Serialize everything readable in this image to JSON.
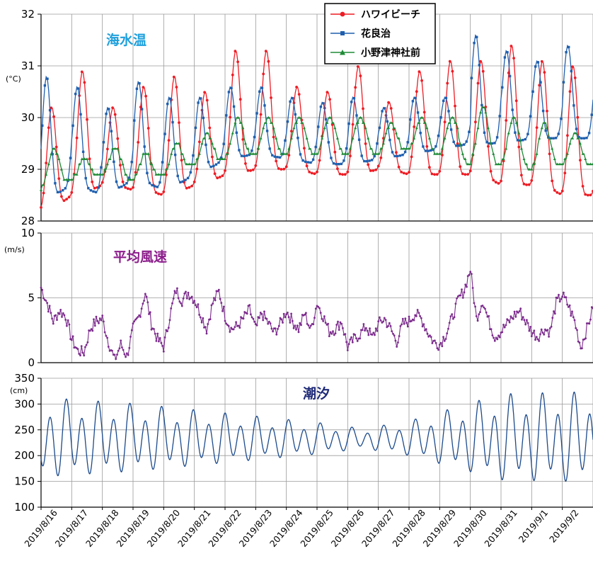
{
  "colors": {
    "hawaii": "#ee1c24",
    "hanarako": "#1f5fae",
    "onotsu": "#1e8a36",
    "wind": "#7b2a8c",
    "tide": "#1b4a8c",
    "title_sea": "#1ea0dc",
    "title_wind": "#8c1e8c",
    "title_tide": "#1e2a78"
  },
  "chart_data": [
    {
      "type": "line",
      "title": "海水温",
      "ylabel": "(°C)",
      "ylim": [
        28,
        32
      ],
      "yticks": [
        28,
        29,
        30,
        31,
        32
      ],
      "xlim": [
        0,
        18
      ],
      "grid": true,
      "legend": "top-right",
      "series": [
        {
          "name": "ハワイビーチ",
          "peaks": [
            30.2,
            30.9,
            30.2,
            30.6,
            30.8,
            30.5,
            31.3,
            31.3,
            30.6,
            30.5,
            31.0,
            30.3,
            30.9,
            31.1,
            31.1,
            31.4,
            31.1,
            31.0
          ],
          "troughs": [
            28.2,
            28.5,
            28.7,
            28.6,
            28.5,
            28.7,
            28.9,
            29.0,
            29.0,
            28.9,
            28.9,
            29.0,
            28.9,
            28.9,
            28.9,
            28.7,
            28.7,
            28.5
          ]
        },
        {
          "name": "花良治",
          "peaks": [
            30.8,
            30.6,
            30.2,
            30.7,
            30.4,
            30.4,
            30.6,
            30.6,
            30.4,
            30.3,
            30.4,
            30.2,
            30.4,
            30.4,
            31.6,
            31.3,
            31.1,
            31.4
          ],
          "troughs": [
            28.4,
            28.7,
            28.5,
            28.8,
            28.6,
            28.9,
            29.2,
            29.3,
            29.2,
            29.1,
            29.1,
            29.2,
            29.3,
            29.4,
            29.5,
            29.5,
            29.6,
            29.6
          ]
        },
        {
          "name": "小野津神社前",
          "peaks": [
            29.4,
            29.2,
            29.4,
            29.3,
            29.5,
            29.7,
            30.0,
            30.0,
            30.0,
            30.0,
            30.0,
            29.9,
            30.0,
            30.0,
            30.2,
            30.0,
            29.9,
            29.7
          ],
          "troughs": [
            28.6,
            28.8,
            28.9,
            28.8,
            28.9,
            29.1,
            29.2,
            29.3,
            29.3,
            29.3,
            29.3,
            29.3,
            29.4,
            29.3,
            29.1,
            29.1,
            29.0,
            29.1
          ]
        }
      ]
    },
    {
      "type": "line",
      "title": "平均風速",
      "ylabel": "(m/s)",
      "ylim": [
        0,
        10
      ],
      "yticks": [
        0,
        5,
        10
      ],
      "xlim": [
        0,
        18
      ],
      "grid": true,
      "series": [
        {
          "name": "平均風速",
          "x": [
            0,
            0.2,
            0.4,
            0.6,
            0.8,
            1.0,
            1.2,
            1.4,
            1.6,
            1.8,
            2.0,
            2.2,
            2.4,
            2.6,
            2.8,
            3.0,
            3.2,
            3.4,
            3.6,
            3.8,
            4.0,
            4.2,
            4.4,
            4.6,
            4.8,
            5.0,
            5.2,
            5.4,
            5.6,
            5.8,
            6.0,
            6.2,
            6.4,
            6.6,
            6.8,
            7.0,
            7.2,
            7.4,
            7.6,
            7.8,
            8.0,
            8.2,
            8.4,
            8.6,
            8.8,
            9.0,
            9.2,
            9.4,
            9.6,
            9.8,
            10.0,
            10.2,
            10.4,
            10.6,
            10.8,
            11.0,
            11.2,
            11.4,
            11.6,
            11.8,
            12.0,
            12.2,
            12.4,
            12.6,
            12.8,
            13.0,
            13.2,
            13.4,
            13.6,
            13.8,
            14.0,
            14.2,
            14.4,
            14.6,
            14.8,
            15.0,
            15.2,
            15.4,
            15.6,
            15.8,
            16.0,
            16.2,
            16.4,
            16.6,
            16.8,
            17.0,
            17.2,
            17.4,
            17.6,
            17.8,
            18.0
          ],
          "y": [
            5.8,
            4.6,
            3.2,
            4.0,
            3.6,
            1.8,
            0.9,
            0.8,
            2.6,
            3.2,
            3.4,
            1.6,
            0.2,
            1.4,
            0.5,
            2.6,
            3.6,
            5.4,
            3.0,
            1.8,
            1.2,
            3.6,
            5.6,
            4.8,
            5.4,
            4.9,
            3.8,
            2.6,
            4.6,
            5.5,
            3.6,
            2.6,
            2.8,
            3.4,
            4.1,
            2.6,
            3.8,
            3.1,
            2.3,
            3.0,
            4.0,
            3.2,
            2.6,
            3.8,
            2.5,
            4.6,
            3.6,
            2.4,
            2.6,
            3.2,
            1.2,
            1.8,
            2.2,
            2.8,
            1.9,
            3.0,
            3.4,
            2.6,
            1.6,
            3.0,
            3.2,
            3.8,
            3.4,
            2.4,
            1.6,
            1.4,
            2.2,
            3.4,
            4.8,
            5.6,
            7.2,
            3.4,
            4.8,
            3.2,
            2.0,
            2.4,
            3.0,
            3.6,
            4.0,
            3.2,
            2.4,
            2.0,
            2.6,
            2.4,
            4.6,
            5.2,
            4.4,
            3.2,
            1.2,
            2.6,
            4.2
          ]
        }
      ]
    },
    {
      "type": "line",
      "title": "潮汐",
      "ylabel": "(cm)",
      "ylim": [
        100,
        350
      ],
      "yticks": [
        100,
        150,
        200,
        250,
        300,
        350
      ],
      "xlim": [
        0,
        18
      ],
      "grid": true,
      "series": [
        {
          "name": "潮汐",
          "amplitude_days": [
            0,
            3,
            6,
            9,
            10.5,
            12,
            15,
            18
          ],
          "amplitude_cm": [
            88,
            75,
            55,
            35,
            22,
            38,
            95,
            100
          ]
        }
      ]
    }
  ],
  "x_axis": {
    "labels": [
      "2019/8/16",
      "2019/8/17",
      "2019/8/18",
      "2019/8/19",
      "2019/8/20",
      "2019/8/21",
      "2019/8/22",
      "2019/8/23",
      "2019/8/24",
      "2019/8/25",
      "2019/8/26",
      "2019/8/27",
      "2019/8/28",
      "2019/8/29",
      "2019/8/30",
      "2019/8/31",
      "2019/9/1",
      "2019/9/2"
    ]
  },
  "legend": {
    "items": [
      "ハワイビーチ",
      "花良治",
      "小野津神社前"
    ]
  }
}
